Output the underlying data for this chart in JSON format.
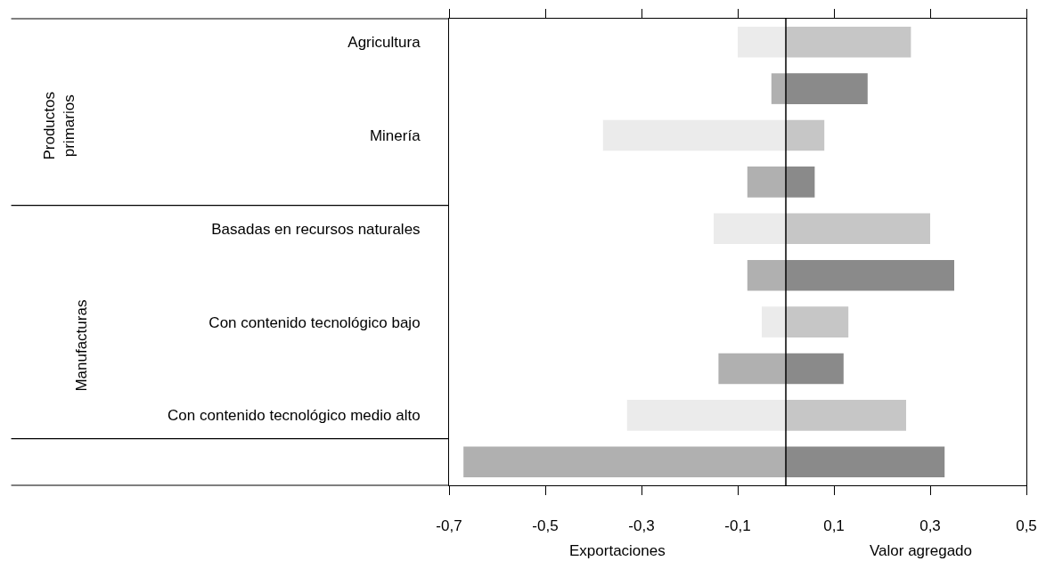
{
  "chart_data": {
    "type": "bar",
    "orientation": "horizontal",
    "categories": [
      "Agricultura",
      null,
      "Minería",
      null,
      "Basadas en recursos naturales",
      null,
      "Con contenido tecnológico bajo",
      null,
      "Con contenido tecnológico medio alto",
      null
    ],
    "series": [
      {
        "colors": [
          "#ebebeb",
          "#b0b0b0",
          "#ebebeb",
          "#b0b0b0",
          "#ebebeb",
          "#b0b0b0",
          "#ebebeb",
          "#b0b0b0",
          "#ebebeb",
          "#b0b0b0"
        ],
        "values": [
          -0.1,
          -0.03,
          -0.38,
          -0.08,
          -0.15,
          -0.08,
          -0.05,
          -0.14,
          -0.33,
          -0.67
        ]
      },
      {
        "colors": [
          "#c6c6c6",
          "#8a8a8a",
          "#c6c6c6",
          "#8a8a8a",
          "#c6c6c6",
          "#8a8a8a",
          "#c6c6c6",
          "#8a8a8a",
          "#c6c6c6",
          "#8a8a8a"
        ],
        "values": [
          0.26,
          0.17,
          0.08,
          0.06,
          0.3,
          0.35,
          0.13,
          0.12,
          0.25,
          0.33
        ]
      }
    ],
    "xlim": [
      -0.7,
      0.5
    ],
    "xticks": [
      {
        "value": -0.7,
        "label": "-0,7"
      },
      {
        "value": -0.5,
        "label": "-0,5"
      },
      {
        "value": -0.3,
        "label": "-0,3"
      },
      {
        "value": -0.1,
        "label": "-0,1"
      },
      {
        "value": 0.1,
        "label": "0,1"
      },
      {
        "value": 0.3,
        "label": "0,3"
      },
      {
        "value": 0.5,
        "label": "0,5"
      }
    ],
    "ref_lines": [
      {
        "axis": "x",
        "value": 0,
        "color": "#000000"
      }
    ],
    "annotations": [
      "Exportaciones",
      "Valor agregado",
      "Productos\nprimarios",
      "Manufacturas"
    ],
    "stacked": true
  }
}
